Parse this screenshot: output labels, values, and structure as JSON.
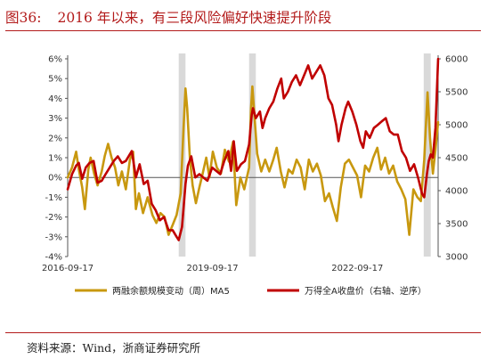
{
  "figure": {
    "number": "图36:",
    "title": "2016 年以来，有三段风险偏好快速提升阶段",
    "source": "资料来源：Wind，浙商证券研究所"
  },
  "colors": {
    "accent": "#b31b1b",
    "margin_series": "#c8980f",
    "index_series": "#c00000",
    "shade": "#d9d9d9"
  },
  "chart_data": {
    "type": "line",
    "x_type": "date",
    "x_range": [
      "2016-09-17",
      "2024-05-20"
    ],
    "x_tick_labels": [
      "2016-09-17",
      "2019-09-17",
      "2022-09-17"
    ],
    "left_axis": {
      "ticks": [
        "-4%",
        "-3%",
        "-2%",
        "-1%",
        "0%",
        "1%",
        "2%",
        "3%",
        "4%",
        "5%",
        "6%"
      ],
      "ylim": [
        -4,
        6
      ],
      "unit": "%"
    },
    "right_axis": {
      "ticks": [
        "3000",
        "3500",
        "4000",
        "4500",
        "5000",
        "5500",
        "6000"
      ],
      "ylim": [
        3000,
        6000
      ]
    },
    "shaded_periods": [
      [
        "2019-01-05",
        "2019-02-25"
      ],
      [
        "2020-06-20",
        "2020-08-10"
      ],
      [
        "2024-02-01",
        "2024-03-25"
      ]
    ],
    "series": [
      {
        "name": "两融余额规模变动（周）MA5",
        "axis": "left",
        "points": [
          [
            "2016-09-17",
            0.0
          ],
          [
            "2016-10-20",
            0.5
          ],
          [
            "2016-11-20",
            1.3
          ],
          [
            "2016-12-10",
            0.4
          ],
          [
            "2017-01-05",
            -0.5
          ],
          [
            "2017-01-25",
            -1.6
          ],
          [
            "2017-02-20",
            0.4
          ],
          [
            "2017-03-10",
            1.0
          ],
          [
            "2017-04-05",
            0.2
          ],
          [
            "2017-05-01",
            -0.4
          ],
          [
            "2017-06-01",
            0.3
          ],
          [
            "2017-06-25",
            1.1
          ],
          [
            "2017-07-20",
            1.7
          ],
          [
            "2017-08-15",
            1.0
          ],
          [
            "2017-09-10",
            0.5
          ],
          [
            "2017-10-05",
            -0.4
          ],
          [
            "2017-11-01",
            0.3
          ],
          [
            "2017-12-01",
            -0.6
          ],
          [
            "2018-01-01",
            0.9
          ],
          [
            "2018-01-25",
            1.3
          ],
          [
            "2018-02-15",
            -1.6
          ],
          [
            "2018-03-10",
            -0.8
          ],
          [
            "2018-04-10",
            -1.8
          ],
          [
            "2018-05-15",
            -1.0
          ],
          [
            "2018-06-20",
            -1.9
          ],
          [
            "2018-07-20",
            -2.3
          ],
          [
            "2018-08-20",
            -1.8
          ],
          [
            "2018-09-20",
            -2.0
          ],
          [
            "2018-10-20",
            -2.9
          ],
          [
            "2018-11-20",
            -2.4
          ],
          [
            "2018-12-20",
            -1.9
          ],
          [
            "2019-01-20",
            -0.8
          ],
          [
            "2019-02-10",
            2.5
          ],
          [
            "2019-02-25",
            4.5
          ],
          [
            "2019-03-10",
            3.5
          ],
          [
            "2019-03-30",
            1.0
          ],
          [
            "2019-04-20",
            -0.4
          ],
          [
            "2019-05-15",
            -1.3
          ],
          [
            "2019-06-10",
            -0.5
          ],
          [
            "2019-07-05",
            0.2
          ],
          [
            "2019-08-01",
            1.0
          ],
          [
            "2019-08-25",
            0.0
          ],
          [
            "2019-09-20",
            1.3
          ],
          [
            "2019-10-20",
            0.5
          ],
          [
            "2019-11-20",
            0.2
          ],
          [
            "2019-12-20",
            1.4
          ],
          [
            "2020-01-20",
            0.8
          ],
          [
            "2020-02-20",
            1.8
          ],
          [
            "2020-03-15",
            -1.4
          ],
          [
            "2020-04-15",
            0.0
          ],
          [
            "2020-05-15",
            -0.6
          ],
          [
            "2020-06-20",
            0.5
          ],
          [
            "2020-07-05",
            3.5
          ],
          [
            "2020-07-15",
            4.6
          ],
          [
            "2020-07-30",
            3.2
          ],
          [
            "2020-08-20",
            1.2
          ],
          [
            "2020-09-20",
            0.3
          ],
          [
            "2020-10-20",
            0.9
          ],
          [
            "2020-11-20",
            0.3
          ],
          [
            "2020-12-20",
            0.9
          ],
          [
            "2021-01-15",
            1.5
          ],
          [
            "2021-02-15",
            0.3
          ],
          [
            "2021-03-15",
            -0.5
          ],
          [
            "2021-04-15",
            0.4
          ],
          [
            "2021-05-15",
            0.2
          ],
          [
            "2021-06-15",
            0.9
          ],
          [
            "2021-07-15",
            0.5
          ],
          [
            "2021-08-15",
            -0.6
          ],
          [
            "2021-09-15",
            0.9
          ],
          [
            "2021-10-15",
            0.3
          ],
          [
            "2021-11-15",
            0.7
          ],
          [
            "2021-12-15",
            0.1
          ],
          [
            "2022-01-15",
            -1.2
          ],
          [
            "2022-02-15",
            -0.8
          ],
          [
            "2022-03-15",
            -1.5
          ],
          [
            "2022-04-15",
            -2.2
          ],
          [
            "2022-05-15",
            -0.5
          ],
          [
            "2022-06-15",
            0.7
          ],
          [
            "2022-07-15",
            0.9
          ],
          [
            "2022-08-15",
            0.5
          ],
          [
            "2022-09-15",
            0.1
          ],
          [
            "2022-10-15",
            -1.0
          ],
          [
            "2022-11-15",
            0.6
          ],
          [
            "2022-12-15",
            0.3
          ],
          [
            "2023-01-15",
            1.0
          ],
          [
            "2023-02-15",
            1.5
          ],
          [
            "2023-03-15",
            0.4
          ],
          [
            "2023-04-15",
            1.0
          ],
          [
            "2023-05-15",
            0.2
          ],
          [
            "2023-06-15",
            0.6
          ],
          [
            "2023-07-15",
            -0.2
          ],
          [
            "2023-08-15",
            -0.6
          ],
          [
            "2023-09-15",
            -1.1
          ],
          [
            "2023-10-15",
            -2.9
          ],
          [
            "2023-11-15",
            -0.6
          ],
          [
            "2023-12-15",
            -1.0
          ],
          [
            "2024-01-10",
            -1.2
          ],
          [
            "2024-02-05",
            0.9
          ],
          [
            "2024-03-01",
            4.3
          ],
          [
            "2024-03-20",
            2.0
          ],
          [
            "2024-04-10",
            0.2
          ],
          [
            "2024-04-30",
            1.4
          ],
          [
            "2024-05-20",
            2.8
          ]
        ]
      },
      {
        "name": "万得全A收盘价（右轴、逆序）",
        "axis": "right",
        "points": [
          [
            "2016-09-17",
            4020
          ],
          [
            "2016-10-20",
            4250
          ],
          [
            "2016-11-20",
            4380
          ],
          [
            "2016-12-10",
            4420
          ],
          [
            "2017-01-05",
            4180
          ],
          [
            "2017-02-01",
            4350
          ],
          [
            "2017-03-01",
            4420
          ],
          [
            "2017-04-01",
            4450
          ],
          [
            "2017-05-01",
            4120
          ],
          [
            "2017-06-01",
            4150
          ],
          [
            "2017-07-01",
            4250
          ],
          [
            "2017-08-01",
            4350
          ],
          [
            "2017-09-01",
            4450
          ],
          [
            "2017-10-01",
            4520
          ],
          [
            "2017-11-01",
            4420
          ],
          [
            "2017-12-01",
            4450
          ],
          [
            "2018-01-15",
            4600
          ],
          [
            "2018-02-15",
            4200
          ],
          [
            "2018-03-15",
            4400
          ],
          [
            "2018-04-15",
            4100
          ],
          [
            "2018-05-15",
            4150
          ],
          [
            "2018-06-15",
            3800
          ],
          [
            "2018-07-15",
            3700
          ],
          [
            "2018-08-15",
            3550
          ],
          [
            "2018-09-15",
            3600
          ],
          [
            "2018-10-20",
            3400
          ],
          [
            "2018-11-20",
            3400
          ],
          [
            "2018-12-20",
            3300
          ],
          [
            "2019-01-05",
            3250
          ],
          [
            "2019-01-30",
            3450
          ],
          [
            "2019-02-25",
            4100
          ],
          [
            "2019-03-15",
            4380
          ],
          [
            "2019-04-10",
            4520
          ],
          [
            "2019-05-10",
            4200
          ],
          [
            "2019-06-10",
            4250
          ],
          [
            "2019-07-10",
            4200
          ],
          [
            "2019-08-10",
            4150
          ],
          [
            "2019-09-15",
            4350
          ],
          [
            "2019-10-15",
            4300
          ],
          [
            "2019-11-15",
            4250
          ],
          [
            "2019-12-15",
            4450
          ],
          [
            "2020-01-15",
            4600
          ],
          [
            "2020-02-05",
            4300
          ],
          [
            "2020-02-25",
            4750
          ],
          [
            "2020-03-20",
            4300
          ],
          [
            "2020-04-20",
            4400
          ],
          [
            "2020-05-20",
            4450
          ],
          [
            "2020-06-20",
            4700
          ],
          [
            "2020-07-10",
            5150
          ],
          [
            "2020-07-20",
            5250
          ],
          [
            "2020-08-10",
            5100
          ],
          [
            "2020-09-10",
            5200
          ],
          [
            "2020-09-30",
            4950
          ],
          [
            "2020-10-20",
            5100
          ],
          [
            "2020-11-20",
            5250
          ],
          [
            "2020-12-20",
            5350
          ],
          [
            "2021-01-20",
            5550
          ],
          [
            "2021-02-18",
            5700
          ],
          [
            "2021-03-10",
            5400
          ],
          [
            "2021-04-10",
            5500
          ],
          [
            "2021-05-10",
            5650
          ],
          [
            "2021-06-10",
            5750
          ],
          [
            "2021-07-10",
            5600
          ],
          [
            "2021-08-10",
            5750
          ],
          [
            "2021-09-10",
            5900
          ],
          [
            "2021-10-10",
            5700
          ],
          [
            "2021-11-10",
            5800
          ],
          [
            "2021-12-10",
            5900
          ],
          [
            "2022-01-10",
            5750
          ],
          [
            "2022-02-10",
            5400
          ],
          [
            "2022-03-10",
            5300
          ],
          [
            "2022-04-10",
            5000
          ],
          [
            "2022-04-27",
            4750
          ],
          [
            "2022-05-20",
            5000
          ],
          [
            "2022-06-20",
            5250
          ],
          [
            "2022-07-10",
            5350
          ],
          [
            "2022-08-10",
            5200
          ],
          [
            "2022-09-10",
            5000
          ],
          [
            "2022-10-10",
            4750
          ],
          [
            "2022-10-31",
            4650
          ],
          [
            "2022-11-20",
            4900
          ],
          [
            "2022-12-20",
            4800
          ],
          [
            "2023-01-20",
            4950
          ],
          [
            "2023-02-20",
            5000
          ],
          [
            "2023-03-20",
            5050
          ],
          [
            "2023-04-20",
            5100
          ],
          [
            "2023-05-20",
            4900
          ],
          [
            "2023-06-20",
            4850
          ],
          [
            "2023-07-20",
            4850
          ],
          [
            "2023-08-20",
            4600
          ],
          [
            "2023-09-20",
            4500
          ],
          [
            "2023-10-20",
            4300
          ],
          [
            "2023-11-20",
            4400
          ],
          [
            "2023-12-20",
            4200
          ],
          [
            "2024-01-20",
            3950
          ],
          [
            "2024-02-05",
            3900
          ],
          [
            "2024-02-25",
            4250
          ],
          [
            "2024-03-10",
            4450
          ],
          [
            "2024-03-25",
            4550
          ],
          [
            "2024-04-10",
            4500
          ],
          [
            "2024-04-30",
            4950
          ],
          [
            "2024-05-20",
            6000
          ]
        ]
      }
    ]
  }
}
